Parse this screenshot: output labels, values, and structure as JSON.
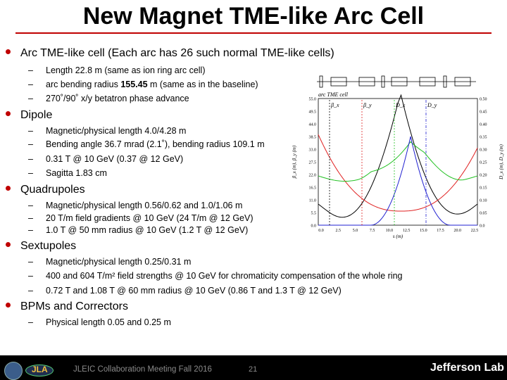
{
  "title": "New Magnet TME-like Arc Cell",
  "sections": [
    {
      "label": "Arc TME-like cell (Each arc has 26 such normal TME-like cells)",
      "items": [
        "Length 22.8 m (same as ion ring arc cell)",
        {
          "pre": "arc bending radius ",
          "bold": "155.45",
          "post": " m (same as in the baseline)"
        },
        "270˚/90˚ x/y betatron phase advance"
      ]
    },
    {
      "label": "Dipole",
      "items": [
        "Magnetic/physical length 4.0/4.28 m",
        "Bending angle 36.7 mrad (2.1˚), bending radius 109.1 m",
        "0.31 T @ 10 GeV (0.37 @ 12 GeV)",
        "Sagitta 1.83 cm"
      ]
    },
    {
      "label": "Quadrupoles",
      "items": [
        "Magnetic/physical length 0.56/0.62 and 1.0/1.06 m",
        "20 T/m field gradients @ 10 GeV (24 T/m @ 12 GeV)",
        "1.0 T @ 50 mm radius @ 10 GeV (1.2 T @ 12 GeV)"
      ]
    },
    {
      "label": "Sextupoles",
      "items": [
        "Magnetic/physical length 0.25/0.31 m",
        "400 and 604 T/m² field strengths @ 10 GeV for chromaticity compensation of the whole ring",
        "0.72 T and 1.08 T @ 60 mm radius @ 10 GeV (0.86 T and 1.3 T @ 12 GeV)"
      ]
    },
    {
      "label": "BPMs and Correctors",
      "items": [
        "Physical length 0.05 and 0.25 m"
      ]
    }
  ],
  "plot": {
    "header": "arc TME cell",
    "y_left_label": "β_x (m), β_y (m)",
    "y_right_label": "D_x (m), D_y (m)",
    "x_label": "s (m)",
    "x_ticks": [
      "0.0",
      "2.5",
      "5.0",
      "7.5",
      "10.0",
      "12.5",
      "15.0",
      "17.5",
      "20.0",
      "22.5"
    ],
    "y_left_ticks": [
      "0.0",
      "5.5",
      "11.0",
      "16.5",
      "22.0",
      "27.5",
      "33.0",
      "38.5",
      "44.0",
      "49.5",
      "55.0"
    ],
    "y_right_ticks": [
      "0.0",
      "0.05",
      "0.10",
      "0.15",
      "0.20",
      "0.25",
      "0.30",
      "0.35",
      "0.40",
      "0.45",
      "0.50"
    ],
    "legend": [
      "β_x",
      "β_y",
      "D_x",
      "D_y"
    ],
    "colors": {
      "bx": "#000000",
      "by": "#e02020",
      "dx": "#20c020",
      "dy": "#2020d0"
    }
  },
  "footer": {
    "conference": "JLEIC Collaboration Meeting Fall 2016",
    "page_number": "21",
    "lab_name": "Jefferson Lab",
    "logo_text": "JLA"
  },
  "colors": {
    "accent": "#c00000",
    "footer_bg": "#000000"
  }
}
